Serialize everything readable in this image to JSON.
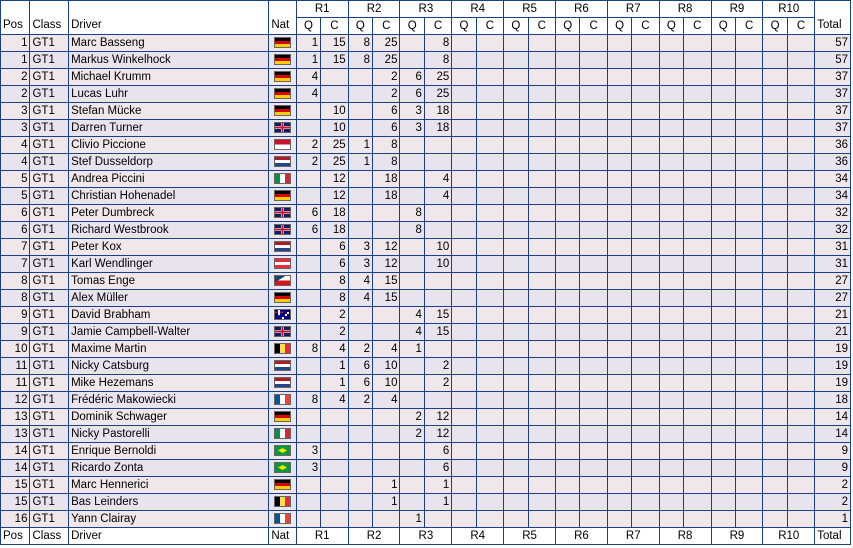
{
  "header": {
    "pos": "Pos",
    "class": "Class",
    "driver": "Driver",
    "nat": "Nat",
    "total": "Total",
    "rounds": [
      "R1",
      "R2",
      "R3",
      "R4",
      "R5",
      "R6",
      "R7",
      "R8",
      "R9",
      "R10"
    ],
    "q": "Q",
    "c": "C"
  },
  "rows": [
    {
      "pos": "1",
      "class": "GT1",
      "driver": "Marc Basseng",
      "flag": "de",
      "s": [
        "1",
        "15",
        "8",
        "25",
        "",
        "8",
        "",
        "",
        "",
        "",
        "",
        "",
        "",
        "",
        "",
        "",
        "",
        "",
        "",
        ""
      ],
      "total": "57"
    },
    {
      "pos": "1",
      "class": "GT1",
      "driver": "Markus Winkelhock",
      "flag": "de",
      "s": [
        "1",
        "15",
        "8",
        "25",
        "",
        "8",
        "",
        "",
        "",
        "",
        "",
        "",
        "",
        "",
        "",
        "",
        "",
        "",
        "",
        ""
      ],
      "total": "57"
    },
    {
      "pos": "2",
      "class": "GT1",
      "driver": "Michael Krumm",
      "flag": "de",
      "s": [
        "4",
        "",
        "",
        "2",
        "6",
        "25",
        "",
        "",
        "",
        "",
        "",
        "",
        "",
        "",
        "",
        "",
        "",
        "",
        "",
        ""
      ],
      "total": "37"
    },
    {
      "pos": "2",
      "class": "GT1",
      "driver": "Lucas Luhr",
      "flag": "de",
      "s": [
        "4",
        "",
        "",
        "2",
        "6",
        "25",
        "",
        "",
        "",
        "",
        "",
        "",
        "",
        "",
        "",
        "",
        "",
        "",
        "",
        ""
      ],
      "total": "37"
    },
    {
      "pos": "3",
      "class": "GT1",
      "driver": "Stefan Mücke",
      "flag": "de",
      "s": [
        "",
        "10",
        "",
        "6",
        "3",
        "18",
        "",
        "",
        "",
        "",
        "",
        "",
        "",
        "",
        "",
        "",
        "",
        "",
        "",
        ""
      ],
      "total": "37"
    },
    {
      "pos": "3",
      "class": "GT1",
      "driver": "Darren Turner",
      "flag": "gb",
      "s": [
        "",
        "10",
        "",
        "6",
        "3",
        "18",
        "",
        "",
        "",
        "",
        "",
        "",
        "",
        "",
        "",
        "",
        "",
        "",
        "",
        ""
      ],
      "total": "37"
    },
    {
      "pos": "4",
      "class": "GT1",
      "driver": "Clivio Piccione",
      "flag": "id",
      "s": [
        "2",
        "25",
        "1",
        "8",
        "",
        "",
        "",
        "",
        "",
        "",
        "",
        "",
        "",
        "",
        "",
        "",
        "",
        "",
        "",
        ""
      ],
      "total": "36"
    },
    {
      "pos": "4",
      "class": "GT1",
      "driver": "Stef Dusseldorp",
      "flag": "nl",
      "s": [
        "2",
        "25",
        "1",
        "8",
        "",
        "",
        "",
        "",
        "",
        "",
        "",
        "",
        "",
        "",
        "",
        "",
        "",
        "",
        "",
        ""
      ],
      "total": "36"
    },
    {
      "pos": "5",
      "class": "GT1",
      "driver": "Andrea Piccini",
      "flag": "it",
      "s": [
        "",
        "12",
        "",
        "18",
        "",
        "4",
        "",
        "",
        "",
        "",
        "",
        "",
        "",
        "",
        "",
        "",
        "",
        "",
        "",
        ""
      ],
      "total": "34"
    },
    {
      "pos": "5",
      "class": "GT1",
      "driver": "Christian Hohenadel",
      "flag": "de",
      "s": [
        "",
        "12",
        "",
        "18",
        "",
        "4",
        "",
        "",
        "",
        "",
        "",
        "",
        "",
        "",
        "",
        "",
        "",
        "",
        "",
        ""
      ],
      "total": "34"
    },
    {
      "pos": "6",
      "class": "GT1",
      "driver": "Peter Dumbreck",
      "flag": "gb",
      "s": [
        "6",
        "18",
        "",
        "",
        "8",
        "",
        "",
        "",
        "",
        "",
        "",
        "",
        "",
        "",
        "",
        "",
        "",
        "",
        "",
        ""
      ],
      "total": "32"
    },
    {
      "pos": "6",
      "class": "GT1",
      "driver": "Richard Westbrook",
      "flag": "gb",
      "s": [
        "6",
        "18",
        "",
        "",
        "8",
        "",
        "",
        "",
        "",
        "",
        "",
        "",
        "",
        "",
        "",
        "",
        "",
        "",
        "",
        ""
      ],
      "total": "32"
    },
    {
      "pos": "7",
      "class": "GT1",
      "driver": "Peter Kox",
      "flag": "nl",
      "s": [
        "",
        "6",
        "3",
        "12",
        "",
        "10",
        "",
        "",
        "",
        "",
        "",
        "",
        "",
        "",
        "",
        "",
        "",
        "",
        "",
        ""
      ],
      "total": "31"
    },
    {
      "pos": "7",
      "class": "GT1",
      "driver": "Karl Wendlinger",
      "flag": "at",
      "s": [
        "",
        "6",
        "3",
        "12",
        "",
        "10",
        "",
        "",
        "",
        "",
        "",
        "",
        "",
        "",
        "",
        "",
        "",
        "",
        "",
        ""
      ],
      "total": "31"
    },
    {
      "pos": "8",
      "class": "GT1",
      "driver": "Tomas Enge",
      "flag": "cz",
      "s": [
        "",
        "8",
        "4",
        "15",
        "",
        "",
        "",
        "",
        "",
        "",
        "",
        "",
        "",
        "",
        "",
        "",
        "",
        "",
        "",
        ""
      ],
      "total": "27"
    },
    {
      "pos": "8",
      "class": "GT1",
      "driver": "Alex Müller",
      "flag": "de",
      "s": [
        "",
        "8",
        "4",
        "15",
        "",
        "",
        "",
        "",
        "",
        "",
        "",
        "",
        "",
        "",
        "",
        "",
        "",
        "",
        "",
        ""
      ],
      "total": "27"
    },
    {
      "pos": "9",
      "class": "GT1",
      "driver": "David Brabham",
      "flag": "au",
      "s": [
        "",
        "2",
        "",
        "",
        "4",
        "15",
        "",
        "",
        "",
        "",
        "",
        "",
        "",
        "",
        "",
        "",
        "",
        "",
        "",
        ""
      ],
      "total": "21"
    },
    {
      "pos": "9",
      "class": "GT1",
      "driver": "Jamie Campbell-Walter",
      "flag": "gb",
      "s": [
        "",
        "2",
        "",
        "",
        "4",
        "15",
        "",
        "",
        "",
        "",
        "",
        "",
        "",
        "",
        "",
        "",
        "",
        "",
        "",
        ""
      ],
      "total": "21"
    },
    {
      "pos": "10",
      "class": "GT1",
      "driver": "Maxime Martin",
      "flag": "be",
      "s": [
        "8",
        "4",
        "2",
        "4",
        "1",
        "",
        "",
        "",
        "",
        "",
        "",
        "",
        "",
        "",
        "",
        "",
        "",
        "",
        "",
        ""
      ],
      "total": "19"
    },
    {
      "pos": "11",
      "class": "GT1",
      "driver": "Nicky Catsburg",
      "flag": "nl",
      "s": [
        "",
        "1",
        "6",
        "10",
        "",
        "2",
        "",
        "",
        "",
        "",
        "",
        "",
        "",
        "",
        "",
        "",
        "",
        "",
        "",
        ""
      ],
      "total": "19"
    },
    {
      "pos": "11",
      "class": "GT1",
      "driver": "Mike Hezemans",
      "flag": "nl",
      "s": [
        "",
        "1",
        "6",
        "10",
        "",
        "2",
        "",
        "",
        "",
        "",
        "",
        "",
        "",
        "",
        "",
        "",
        "",
        "",
        "",
        ""
      ],
      "total": "19"
    },
    {
      "pos": "12",
      "class": "GT1",
      "driver": "Frédéric Makowiecki",
      "flag": "fr",
      "s": [
        "8",
        "4",
        "2",
        "4",
        "",
        "",
        "",
        "",
        "",
        "",
        "",
        "",
        "",
        "",
        "",
        "",
        "",
        "",
        "",
        ""
      ],
      "total": "18"
    },
    {
      "pos": "13",
      "class": "GT1",
      "driver": "Dominik Schwager",
      "flag": "de",
      "s": [
        "",
        "",
        "",
        "",
        "2",
        "12",
        "",
        "",
        "",
        "",
        "",
        "",
        "",
        "",
        "",
        "",
        "",
        "",
        "",
        ""
      ],
      "total": "14"
    },
    {
      "pos": "13",
      "class": "GT1",
      "driver": "Nicky Pastorelli",
      "flag": "it",
      "s": [
        "",
        "",
        "",
        "",
        "2",
        "12",
        "",
        "",
        "",
        "",
        "",
        "",
        "",
        "",
        "",
        "",
        "",
        "",
        "",
        ""
      ],
      "total": "14"
    },
    {
      "pos": "14",
      "class": "GT1",
      "driver": "Enrique Bernoldi",
      "flag": "br",
      "s": [
        "3",
        "",
        "",
        "",
        "",
        "6",
        "",
        "",
        "",
        "",
        "",
        "",
        "",
        "",
        "",
        "",
        "",
        "",
        "",
        ""
      ],
      "total": "9"
    },
    {
      "pos": "14",
      "class": "GT1",
      "driver": "Ricardo Zonta",
      "flag": "br",
      "s": [
        "3",
        "",
        "",
        "",
        "",
        "6",
        "",
        "",
        "",
        "",
        "",
        "",
        "",
        "",
        "",
        "",
        "",
        "",
        "",
        ""
      ],
      "total": "9"
    },
    {
      "pos": "15",
      "class": "GT1",
      "driver": "Marc Hennerici",
      "flag": "de",
      "s": [
        "",
        "",
        "",
        "1",
        "",
        "1",
        "",
        "",
        "",
        "",
        "",
        "",
        "",
        "",
        "",
        "",
        "",
        "",
        "",
        ""
      ],
      "total": "2"
    },
    {
      "pos": "15",
      "class": "GT1",
      "driver": "Bas Leinders",
      "flag": "be",
      "s": [
        "",
        "",
        "",
        "1",
        "",
        "1",
        "",
        "",
        "",
        "",
        "",
        "",
        "",
        "",
        "",
        "",
        "",
        "",
        "",
        ""
      ],
      "total": "2"
    },
    {
      "pos": "16",
      "class": "GT1",
      "driver": "Yann Clairay",
      "flag": "fr",
      "s": [
        "",
        "",
        "",
        "",
        "1",
        "",
        "",
        "",
        "",
        "",
        "",
        "",
        "",
        "",
        "",
        "",
        "",
        "",
        "",
        ""
      ],
      "total": "1"
    }
  ]
}
